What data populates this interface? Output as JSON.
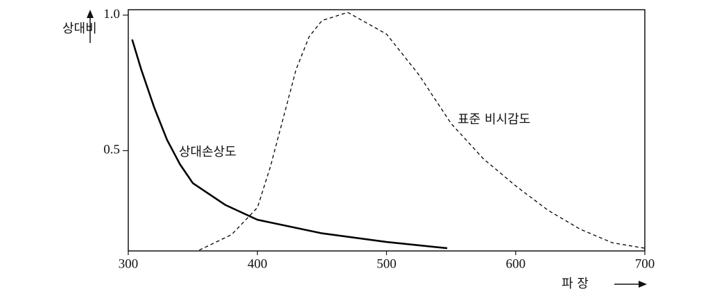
{
  "chart_data": {
    "type": "line",
    "y_label": "상대비",
    "x_label": "파 장",
    "xlim": [
      300,
      700
    ],
    "xticks": [
      300,
      400,
      500,
      600,
      700
    ],
    "ylim": [
      0.13,
      1.02
    ],
    "yticks": [
      0.5,
      {
        "value": 1,
        "label": "1.0"
      }
    ],
    "series": [
      {
        "name": "상대손상도",
        "color": "#000000",
        "dashed": false,
        "x": [
          303,
          310,
          320,
          330,
          340,
          350,
          375,
          400,
          450,
          500,
          547
        ],
        "values": [
          0.91,
          0.8,
          0.66,
          0.54,
          0.45,
          0.38,
          0.3,
          0.245,
          0.195,
          0.163,
          0.14
        ]
      },
      {
        "name": "표준 비시감도",
        "color": "#000000",
        "dashed": true,
        "x": [
          355,
          380,
          400,
          410,
          420,
          430,
          440,
          450,
          470,
          500,
          525,
          550,
          575,
          600,
          625,
          650,
          675,
          700
        ],
        "values": [
          0.133,
          0.19,
          0.29,
          0.44,
          0.62,
          0.8,
          0.92,
          0.98,
          1.01,
          0.93,
          0.78,
          0.6,
          0.47,
          0.37,
          0.28,
          0.21,
          0.16,
          0.14
        ]
      }
    ]
  }
}
